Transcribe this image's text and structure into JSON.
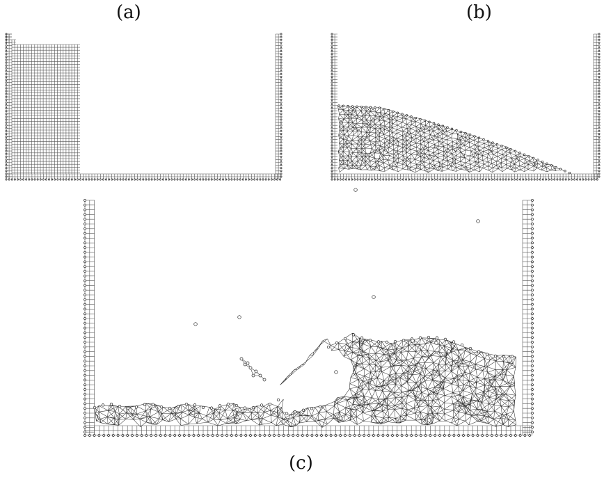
{
  "figure": {
    "panels": [
      {
        "id": "a",
        "label": "(a)"
      },
      {
        "id": "b",
        "label": "(b)"
      },
      {
        "id": "c",
        "label": "(c)"
      }
    ]
  },
  "colors": {
    "mesh": "#555555",
    "node": "#222222",
    "background": "#ffffff"
  }
}
